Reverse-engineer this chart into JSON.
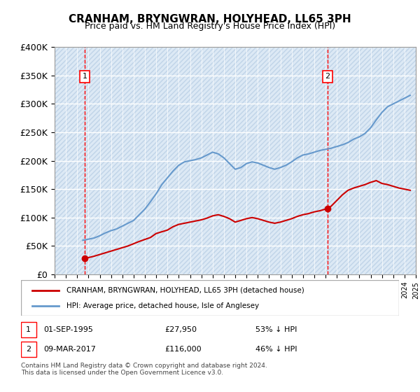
{
  "title": "CRANHAM, BRYNGWRAN, HOLYHEAD, LL65 3PH",
  "subtitle": "Price paid vs. HM Land Registry's House Price Index (HPI)",
  "xlabel": "",
  "ylabel": "",
  "ylim": [
    0,
    400000
  ],
  "yticks": [
    0,
    50000,
    100000,
    150000,
    200000,
    250000,
    300000,
    350000,
    400000
  ],
  "ytick_labels": [
    "£0",
    "£50K",
    "£100K",
    "£150K",
    "£200K",
    "£250K",
    "£300K",
    "£350K",
    "£400K"
  ],
  "background_color": "#dce9f5",
  "hatch_color": "#c0d4e8",
  "grid_color": "#ffffff",
  "sale1_date": "01-SEP-1995",
  "sale1_price": 27950,
  "sale1_label": "1",
  "sale2_date": "09-MAR-2017",
  "sale2_price": 116000,
  "sale2_label": "2",
  "sale1_x": 1995.67,
  "sale2_x": 2017.19,
  "legend_sale_label": "CRANHAM, BRYNGWRAN, HOLYHEAD, LL65 3PH (detached house)",
  "legend_hpi_label": "HPI: Average price, detached house, Isle of Anglesey",
  "footer": "Contains HM Land Registry data © Crown copyright and database right 2024.\nThis data is licensed under the Open Government Licence v3.0.",
  "sale_color": "#cc0000",
  "hpi_color": "#6699cc",
  "annotation1_text": "1",
  "annotation2_text": "2",
  "note1": "1   01-SEP-1995        £27,950        53% ↓ HPI",
  "note2": "2   09-MAR-2017        £116,000      46% ↓ HPI",
  "hpi_data": {
    "years": [
      1995.5,
      1996.0,
      1996.5,
      1997.0,
      1997.5,
      1998.0,
      1998.5,
      1999.0,
      1999.5,
      2000.0,
      2000.5,
      2001.0,
      2001.5,
      2002.0,
      2002.5,
      2003.0,
      2003.5,
      2004.0,
      2004.5,
      2005.0,
      2005.5,
      2006.0,
      2006.5,
      2007.0,
      2007.5,
      2008.0,
      2008.5,
      2009.0,
      2009.5,
      2010.0,
      2010.5,
      2011.0,
      2011.5,
      2012.0,
      2012.5,
      2013.0,
      2013.5,
      2014.0,
      2014.5,
      2015.0,
      2015.5,
      2016.0,
      2016.5,
      2017.0,
      2017.5,
      2018.0,
      2018.5,
      2019.0,
      2019.5,
      2020.0,
      2020.5,
      2021.0,
      2021.5,
      2022.0,
      2022.5,
      2023.0,
      2023.5,
      2024.0,
      2024.5
    ],
    "values": [
      60000,
      62000,
      64000,
      68000,
      73000,
      77000,
      80000,
      85000,
      90000,
      95000,
      105000,
      115000,
      128000,
      142000,
      158000,
      170000,
      182000,
      192000,
      198000,
      200000,
      202000,
      205000,
      210000,
      215000,
      212000,
      205000,
      195000,
      185000,
      188000,
      195000,
      198000,
      196000,
      192000,
      188000,
      185000,
      188000,
      192000,
      198000,
      205000,
      210000,
      212000,
      215000,
      218000,
      220000,
      222000,
      225000,
      228000,
      232000,
      238000,
      242000,
      248000,
      258000,
      272000,
      285000,
      295000,
      300000,
      305000,
      310000,
      315000
    ]
  },
  "sale_data": {
    "years": [
      1995.67,
      1996.5,
      1997.5,
      1998.5,
      1999.5,
      2000.5,
      2001.5,
      2002.0,
      2003.0,
      2003.5,
      2004.0,
      2005.0,
      2006.0,
      2006.5,
      2007.0,
      2007.5,
      2008.0,
      2008.5,
      2009.0,
      2009.5,
      2010.0,
      2010.5,
      2011.0,
      2011.5,
      2012.0,
      2012.5,
      2013.0,
      2013.5,
      2014.0,
      2014.5,
      2015.0,
      2015.5,
      2016.0,
      2016.5,
      2017.19,
      2017.5,
      2018.0,
      2018.5,
      2019.0,
      2019.5,
      2020.0,
      2020.5,
      2021.0,
      2021.5,
      2022.0,
      2022.5,
      2023.0,
      2023.5,
      2024.0,
      2024.5
    ],
    "values": [
      27950,
      32000,
      38000,
      44000,
      50000,
      58000,
      65000,
      72000,
      78000,
      84000,
      88000,
      92000,
      96000,
      99000,
      103000,
      105000,
      102000,
      98000,
      92000,
      95000,
      98000,
      100000,
      98000,
      95000,
      92000,
      90000,
      92000,
      95000,
      98000,
      102000,
      105000,
      107000,
      110000,
      112000,
      116000,
      120000,
      130000,
      140000,
      148000,
      152000,
      155000,
      158000,
      162000,
      165000,
      160000,
      158000,
      155000,
      152000,
      150000,
      148000
    ]
  }
}
